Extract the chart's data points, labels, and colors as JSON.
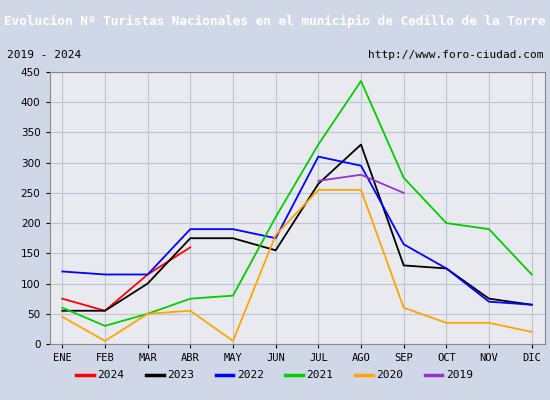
{
  "title": "Evolucion Nº Turistas Nacionales en el municipio de Cedillo de la Torre",
  "subtitle_left": "2019 - 2024",
  "subtitle_right": "http://www.foro-ciudad.com",
  "title_bg": "#4472c4",
  "title_color": "#ffffff",
  "months": [
    "ENE",
    "FEB",
    "MAR",
    "ABR",
    "MAY",
    "JUN",
    "JUL",
    "AGO",
    "SEP",
    "OCT",
    "NOV",
    "DIC"
  ],
  "ylim": [
    0,
    450
  ],
  "yticks": [
    0,
    50,
    100,
    150,
    200,
    250,
    300,
    350,
    400,
    450
  ],
  "series": {
    "2024": {
      "color": "#ff0000",
      "data": [
        75,
        55,
        115,
        160,
        null,
        null,
        null,
        null,
        null,
        null,
        null,
        null
      ]
    },
    "2023": {
      "color": "#000000",
      "data": [
        55,
        55,
        100,
        175,
        175,
        155,
        265,
        330,
        130,
        125,
        75,
        65
      ]
    },
    "2022": {
      "color": "#0000ff",
      "data": [
        120,
        115,
        115,
        190,
        190,
        175,
        310,
        295,
        165,
        125,
        70,
        65
      ]
    },
    "2021": {
      "color": "#00cc00",
      "data": [
        60,
        30,
        50,
        75,
        80,
        210,
        330,
        435,
        275,
        200,
        190,
        115
      ]
    },
    "2020": {
      "color": "#ffa500",
      "data": [
        45,
        5,
        50,
        55,
        5,
        180,
        255,
        255,
        60,
        35,
        35,
        20
      ]
    },
    "2019": {
      "color": "#9933cc",
      "data": [
        null,
        null,
        null,
        null,
        null,
        null,
        270,
        280,
        250,
        null,
        null,
        null
      ]
    }
  },
  "legend_order": [
    "2024",
    "2023",
    "2022",
    "2021",
    "2020",
    "2019"
  ],
  "outer_bg": "#d0d8e8",
  "plot_bg": "#e8eaf0",
  "grid_color": "#c0c4cc",
  "subtitle_bg": "#ffffff"
}
